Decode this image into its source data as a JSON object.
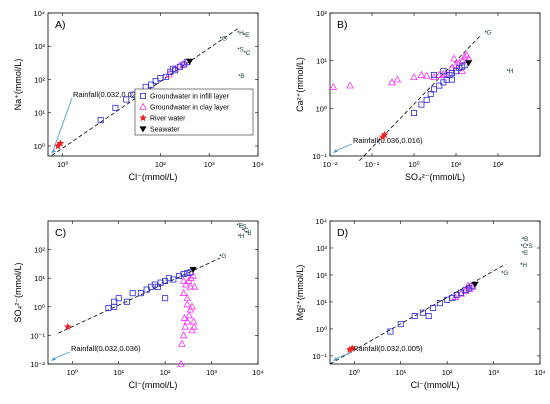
{
  "chart_data": [
    {
      "type": "scatter",
      "panel_label": "A)",
      "xlabel": "Cl⁻(mmol/L)",
      "ylabel": "Na⁺(mmol/L)",
      "xscale": "log",
      "yscale": "log",
      "xlim": [
        0.5,
        10000
      ],
      "ylim": [
        0.5,
        10000
      ],
      "xticks": [
        1,
        100,
        1000,
        10000
      ],
      "xticklabels": [
        "10⁰",
        "10²",
        "10³",
        "10⁴"
      ],
      "yticks": [
        1,
        10,
        100,
        1000,
        10000
      ],
      "yticklabels": [
        "10⁰",
        "10¹",
        "10²",
        "10³",
        "10⁴"
      ],
      "rainfall": {
        "label": "Rainfall(0.032,0.023)",
        "x": 0.032,
        "y": 0.023
      },
      "fit_line": [
        [
          0.6,
          0.52
        ],
        [
          4000,
          3500
        ]
      ],
      "seawater": [
        [
          400,
          350
        ]
      ],
      "river": [
        [
          0.8,
          1.0
        ],
        [
          0.9,
          1.2
        ]
      ],
      "groundwater_infill": [
        [
          6,
          6
        ],
        [
          12,
          14
        ],
        [
          20,
          25
        ],
        [
          28,
          35
        ],
        [
          35,
          40
        ],
        [
          50,
          60
        ],
        [
          65,
          70
        ],
        [
          80,
          90
        ],
        [
          100,
          110
        ],
        [
          130,
          120
        ],
        [
          160,
          170
        ],
        [
          200,
          190
        ],
        [
          250,
          240
        ],
        [
          300,
          280
        ],
        [
          350,
          330
        ],
        [
          180,
          210
        ]
      ],
      "groundwater_clay": [
        [
          150,
          140
        ],
        [
          200,
          210
        ],
        [
          250,
          260
        ],
        [
          300,
          290
        ],
        [
          350,
          330
        ]
      ],
      "annotations": [
        {
          "text": "G",
          "x": 2000,
          "y": 1500
        },
        {
          "text": "H",
          "x": 4500,
          "y": 2200
        },
        {
          "text": "E",
          "x": 6000,
          "y": 1900
        },
        {
          "text": "S",
          "x": 4600,
          "y": 700
        },
        {
          "text": "C",
          "x": 6200,
          "y": 550
        },
        {
          "text": "B",
          "x": 4800,
          "y": 110
        }
      ],
      "legend": {
        "placement": "center-right",
        "entries": [
          {
            "label": "Groundwater in infill layer",
            "marker": "square",
            "color": "#2b2bd0"
          },
          {
            "label": "Groundwater in clay layer",
            "marker": "triangle",
            "color": "#ff33ff"
          },
          {
            "label": "River water",
            "marker": "star",
            "color": "#ee2020"
          },
          {
            "label": "Seawater",
            "marker": "triangle-down",
            "color": "#000000"
          }
        ]
      }
    },
    {
      "type": "scatter",
      "panel_label": "B)",
      "xlabel": "SO₄²⁻(mmol/L)",
      "ylabel": "Ca²⁺(mmol/L)",
      "xscale": "log",
      "yscale": "log",
      "xlim": [
        0.01,
        1000
      ],
      "ylim": [
        0.1,
        100
      ],
      "xticks": [
        0.01,
        0.1,
        1,
        10,
        100
      ],
      "xticklabels": [
        "10⁻²",
        "10⁻¹",
        "10⁰",
        "10¹",
        "10²"
      ],
      "yticks": [
        0.1,
        1,
        10,
        100
      ],
      "yticklabels": [
        "10⁻¹",
        "10⁰",
        "10¹",
        "10²"
      ],
      "rainfall": {
        "label": "Rainfall(0.036,0.016)",
        "x": 0.036,
        "y": 0.016
      },
      "fit_line": [
        [
          0.05,
          0.08
        ],
        [
          40,
          35
        ]
      ],
      "seawater": [
        [
          20,
          9
        ]
      ],
      "river": [
        [
          0.18,
          0.25
        ],
        [
          0.2,
          0.28
        ]
      ],
      "groundwater_infill": [
        [
          1,
          0.8
        ],
        [
          1.5,
          1.2
        ],
        [
          2,
          1.5
        ],
        [
          2.5,
          2
        ],
        [
          3,
          2.5
        ],
        [
          4,
          3
        ],
        [
          5,
          3.5
        ],
        [
          6,
          4
        ],
        [
          7,
          5
        ],
        [
          8,
          5.5
        ],
        [
          10,
          6
        ],
        [
          12,
          7
        ],
        [
          14,
          7.5
        ],
        [
          16,
          8
        ],
        [
          3,
          5
        ],
        [
          8,
          4
        ],
        [
          5,
          6
        ]
      ],
      "groundwater_clay": [
        [
          0.012,
          2.8
        ],
        [
          0.03,
          3
        ],
        [
          0.3,
          3.5
        ],
        [
          0.4,
          4
        ],
        [
          1,
          4.5
        ],
        [
          1.5,
          5
        ],
        [
          2,
          4.8
        ],
        [
          3,
          4.5
        ],
        [
          4,
          5
        ],
        [
          5,
          5.2
        ],
        [
          6,
          5
        ],
        [
          8,
          7
        ],
        [
          10,
          8
        ],
        [
          12,
          9
        ],
        [
          14,
          10
        ],
        [
          16,
          12
        ],
        [
          18,
          13
        ],
        [
          20,
          11
        ],
        [
          9,
          11
        ],
        [
          14,
          6
        ]
      ],
      "annotations": [
        {
          "text": "G",
          "x": 60,
          "y": 35
        },
        {
          "text": "H",
          "x": 200,
          "y": 5.5
        }
      ]
    },
    {
      "type": "scatter",
      "panel_label": "C)",
      "xlabel": "Cl⁻(mmol/L)",
      "ylabel": "SO₄²⁻(mmol/L)",
      "xscale": "log",
      "yscale": "log",
      "xlim": [
        0.3,
        10000
      ],
      "ylim": [
        0.01,
        1000
      ],
      "xticks": [
        1,
        10,
        100,
        1000,
        10000
      ],
      "xticklabels": [
        "10⁰",
        "10¹",
        "10²",
        "10³",
        "10⁴"
      ],
      "yticks": [
        0.01,
        0.1,
        1,
        10,
        100
      ],
      "yticklabels": [
        "10⁻²",
        "10⁻¹",
        "10⁰",
        "10¹",
        "10²"
      ],
      "rainfall": {
        "label": "Rainfall(0.032,0.036)",
        "x": 0.032,
        "y": 0.036
      },
      "fit_line": [
        [
          0.5,
          0.12
        ],
        [
          1500,
          50
        ]
      ],
      "seawater": [
        [
          400,
          20
        ]
      ],
      "river": [
        [
          0.8,
          0.2
        ]
      ],
      "groundwater_infill": [
        [
          6,
          0.9
        ],
        [
          8,
          1.5
        ],
        [
          10,
          2
        ],
        [
          15,
          1.5
        ],
        [
          20,
          3
        ],
        [
          30,
          3
        ],
        [
          40,
          4
        ],
        [
          50,
          5
        ],
        [
          60,
          6
        ],
        [
          70,
          5
        ],
        [
          80,
          7
        ],
        [
          100,
          8
        ],
        [
          120,
          10
        ],
        [
          150,
          9
        ],
        [
          200,
          12
        ],
        [
          250,
          14
        ],
        [
          300,
          15
        ],
        [
          350,
          16
        ],
        [
          8,
          1
        ],
        [
          100,
          2
        ]
      ],
      "groundwater_clay": [
        [
          220,
          0.01
        ],
        [
          230,
          0.05
        ],
        [
          250,
          0.1
        ],
        [
          270,
          0.2
        ],
        [
          300,
          0.3
        ],
        [
          330,
          0.5
        ],
        [
          350,
          0.8
        ],
        [
          380,
          1
        ],
        [
          300,
          2
        ],
        [
          250,
          3
        ],
        [
          350,
          5
        ],
        [
          280,
          6
        ],
        [
          320,
          8
        ],
        [
          360,
          10
        ],
        [
          400,
          12
        ],
        [
          260,
          0.4
        ],
        [
          410,
          0.3
        ],
        [
          420,
          0.2
        ],
        [
          380,
          0.15
        ],
        [
          300,
          1.2
        ],
        [
          430,
          5
        ],
        [
          250,
          8
        ]
      ],
      "annotations": [
        {
          "text": "G",
          "x": 1800,
          "y": 50
        },
        {
          "text": "E",
          "x": 4200,
          "y": 600
        },
        {
          "text": "S",
          "x": 5000,
          "y": 550
        },
        {
          "text": "C",
          "x": 5500,
          "y": 400
        },
        {
          "text": "B",
          "x": 6500,
          "y": 330
        },
        {
          "text": "H",
          "x": 4500,
          "y": 250
        }
      ]
    },
    {
      "type": "scatter",
      "panel_label": "D)",
      "xlabel": "Cl⁻(mmol/L)",
      "ylabel": "Mg²⁺(mmol/L)",
      "xscale": "log",
      "yscale": "log",
      "xlim": [
        0.3,
        10000
      ],
      "ylim": [
        0.05,
        10000
      ],
      "xticks": [
        1,
        10,
        100,
        1000,
        10000
      ],
      "xticklabels": [
        "10⁰",
        "10¹",
        "10²",
        "10³",
        "10⁴"
      ],
      "yticks": [
        0.1,
        1,
        10,
        100,
        1000,
        10000
      ],
      "yticklabels": [
        "10⁻¹",
        "10⁰",
        "10¹",
        "10²",
        "10³",
        "10⁴"
      ],
      "rainfall": {
        "label": "Rainfall(0.032,0.005)",
        "x": 0.032,
        "y": 0.005
      },
      "fit_line": [
        [
          0.3,
          0.05
        ],
        [
          1800,
          250
        ]
      ],
      "seawater": [
        [
          400,
          45
        ]
      ],
      "river": [
        [
          0.8,
          0.17
        ],
        [
          0.9,
          0.19
        ]
      ],
      "groundwater_infill": [
        [
          6,
          0.8
        ],
        [
          10,
          1.5
        ],
        [
          20,
          3
        ],
        [
          30,
          4
        ],
        [
          50,
          6
        ],
        [
          70,
          9
        ],
        [
          100,
          12
        ],
        [
          130,
          14
        ],
        [
          160,
          18
        ],
        [
          200,
          22
        ],
        [
          250,
          28
        ],
        [
          300,
          32
        ],
        [
          350,
          40
        ],
        [
          40,
          3
        ]
      ],
      "groundwater_clay": [
        [
          150,
          15
        ],
        [
          200,
          20
        ],
        [
          250,
          25
        ],
        [
          300,
          30
        ],
        [
          350,
          35
        ],
        [
          280,
          40
        ]
      ],
      "annotations": [
        {
          "text": "B",
          "x": 5000,
          "y": 1800
        },
        {
          "text": "C",
          "x": 4700,
          "y": 1000
        },
        {
          "text": "S",
          "x": 6200,
          "y": 1000
        },
        {
          "text": "E",
          "x": 5000,
          "y": 550
        },
        {
          "text": "H",
          "x": 4600,
          "y": 200
        },
        {
          "text": "G",
          "x": 1800,
          "y": 100
        }
      ]
    }
  ]
}
